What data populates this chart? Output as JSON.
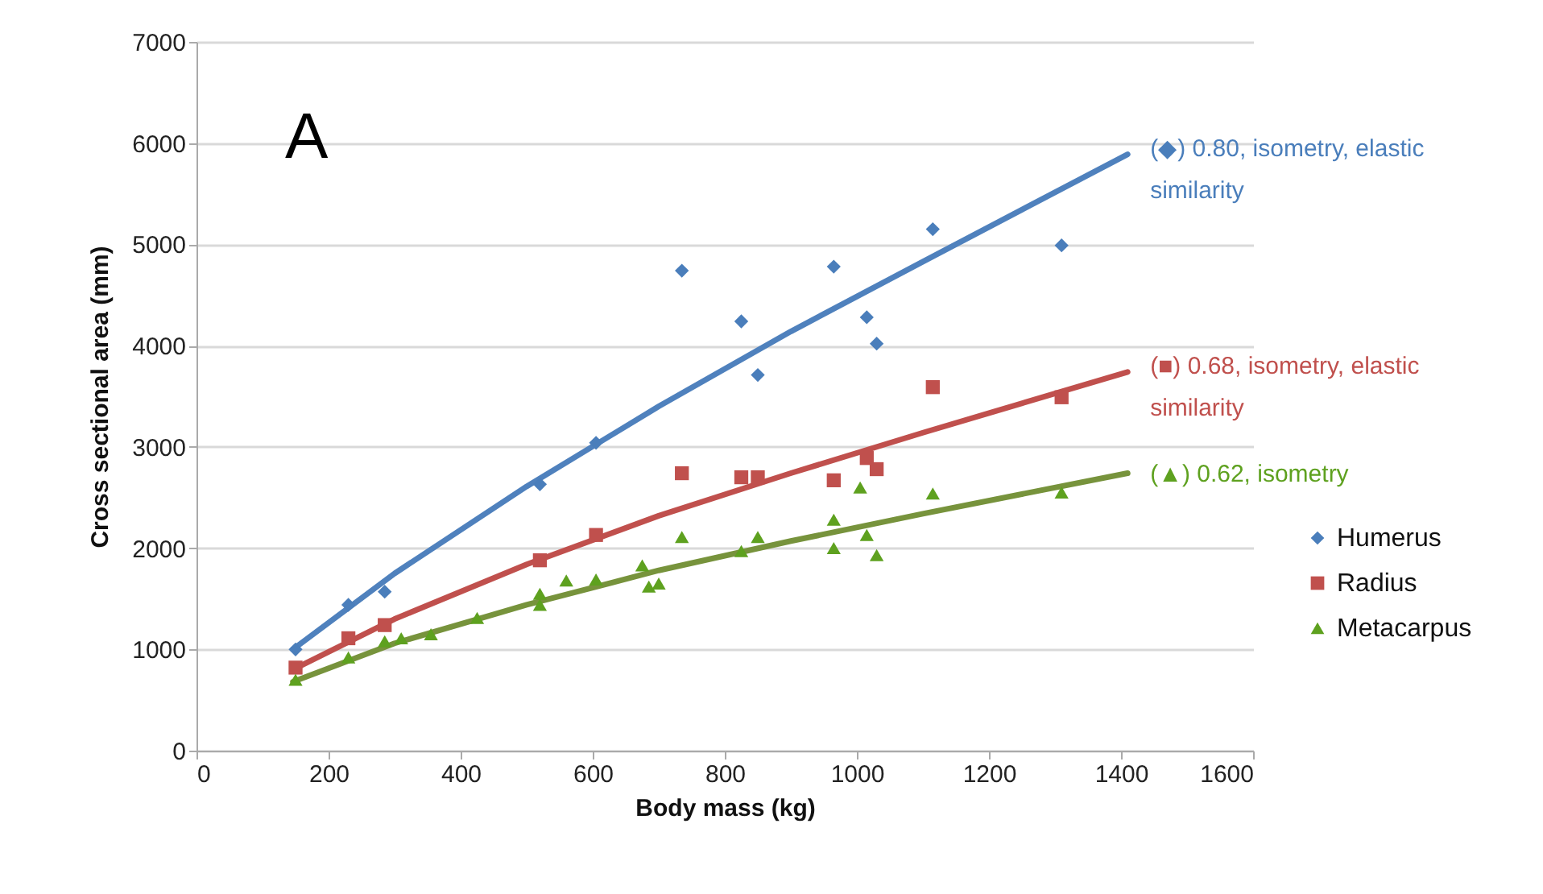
{
  "chart_data": {
    "type": "scatter",
    "xlabel": "Body mass (kg)",
    "ylabel": "Cross sectional area (mm)",
    "xlim": [
      0,
      1600
    ],
    "xticks": [
      0,
      200,
      400,
      600,
      800,
      1000,
      1200,
      1400,
      1600
    ],
    "ylim": [
      0,
      7000
    ],
    "yticks": [
      0,
      1000,
      2000,
      3000,
      4000,
      5000,
      6000,
      7000
    ],
    "grid": "y",
    "legend": "right",
    "annotations": [
      "A",
      "(◆) 0.80, isometry, elastic similarity",
      "(■) 0.68, isometry, elastic similarity",
      "(▲) 0.62, isometry"
    ],
    "series": [
      {
        "name": "Humerus",
        "color": "#4a7ebb",
        "marker": "diamond",
        "x": [
          150,
          230,
          285,
          520,
          605,
          735,
          825,
          850,
          965,
          1015,
          1030,
          1115,
          1310
        ],
        "values": [
          1000,
          1440,
          1570,
          2630,
          3040,
          4740,
          4240,
          3710,
          4780,
          4280,
          4020,
          5150,
          4990
        ]
      },
      {
        "name": "Radius",
        "color": "#c0504d",
        "marker": "square",
        "x": [
          150,
          230,
          285,
          520,
          605,
          735,
          825,
          850,
          965,
          1015,
          1030,
          1115,
          1310
        ],
        "values": [
          820,
          1110,
          1240,
          1880,
          2130,
          2740,
          2700,
          2700,
          2670,
          2890,
          2780,
          3590,
          3490
        ]
      },
      {
        "name": "Metacarpus",
        "color": "#5ea11f",
        "marker": "triangle",
        "x": [
          150,
          230,
          285,
          310,
          355,
          425,
          520,
          520,
          560,
          605,
          675,
          685,
          700,
          735,
          825,
          850,
          965,
          965,
          1005,
          1015,
          1030,
          1115,
          1310
        ],
        "values": [
          700,
          920,
          1080,
          1110,
          1150,
          1310,
          1440,
          1550,
          1680,
          1690,
          1830,
          1620,
          1650,
          2110,
          1970,
          2110,
          2000,
          2280,
          2600,
          2130,
          1930,
          2540,
          2550
        ]
      },
      {
        "type": "line",
        "color": "#4f81bd",
        "x": [
          146,
          300,
          500,
          700,
          900,
          1100,
          1410
        ],
        "values": [
          1000,
          1750,
          2610,
          3400,
          4140,
          4830,
          5890
        ]
      },
      {
        "type": "line",
        "color": "#c0504d",
        "x": [
          146,
          300,
          500,
          700,
          900,
          1100,
          1410
        ],
        "values": [
          800,
          1300,
          1840,
          2320,
          2740,
          3140,
          3740
        ]
      },
      {
        "type": "line",
        "color": "#77933c",
        "x": [
          146,
          300,
          500,
          700,
          900,
          1100,
          1410
        ],
        "values": [
          680,
          1060,
          1440,
          1780,
          2070,
          2340,
          2740
        ]
      }
    ]
  }
}
